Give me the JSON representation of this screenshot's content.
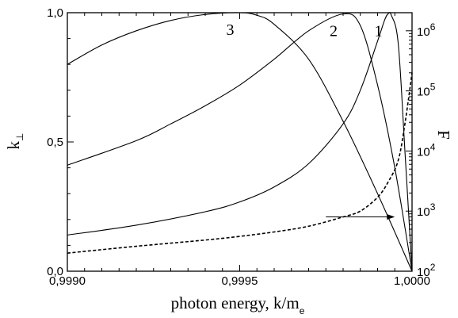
{
  "chart_data": {
    "type": "line",
    "title": "",
    "xlabel": "photon energy, k/m",
    "xlabel_sub": "e",
    "ylabel_left": "k",
    "ylabel_left_sub": "⊥",
    "ylabel_right": "F",
    "xlim": [
      0.999,
      1.0
    ],
    "ylim_left": [
      0.0,
      1.0
    ],
    "ylim_right": [
      100,
      2000000
    ],
    "right_axis_scale": "log",
    "grid": false,
    "x_ticks": [
      {
        "value": 0.999,
        "label": "0,9990"
      },
      {
        "value": 0.9995,
        "label": "0,9995"
      },
      {
        "value": 1.0,
        "label": "1,0000"
      }
    ],
    "y_left_ticks": [
      {
        "value": 0.0,
        "label": "0,0"
      },
      {
        "value": 0.5,
        "label": "0,5"
      },
      {
        "value": 1.0,
        "label": "1,0"
      }
    ],
    "y_right_ticks": [
      {
        "value": 100,
        "base": "10",
        "exp": "2"
      },
      {
        "value": 1000,
        "base": "10",
        "exp": "3"
      },
      {
        "value": 10000,
        "base": "10",
        "exp": "4"
      },
      {
        "value": 100000,
        "base": "10",
        "exp": "5"
      },
      {
        "value": 1000000,
        "base": "10",
        "exp": "6"
      }
    ],
    "series": [
      {
        "name": "1",
        "axis": "left",
        "style": "solid",
        "x": [
          0.999,
          0.9992,
          0.9994,
          0.9995,
          0.9996,
          0.9997,
          0.9998,
          0.99985,
          0.9999,
          0.99992,
          0.99993,
          0.99994,
          0.99996,
          0.99998,
          1.0
        ],
        "y": [
          0.14,
          0.178,
          0.23,
          0.268,
          0.326,
          0.416,
          0.57,
          0.7,
          0.89,
          0.97,
          0.995,
          0.99,
          0.88,
          0.45,
          0.0
        ]
      },
      {
        "name": "2",
        "axis": "left",
        "style": "solid",
        "x": [
          0.999,
          0.9992,
          0.9993,
          0.9994,
          0.9995,
          0.9996,
          0.9997,
          0.9998,
          0.99985,
          0.9999,
          0.99995,
          1.0
        ],
        "y": [
          0.41,
          0.505,
          0.57,
          0.64,
          0.72,
          0.82,
          0.93,
          0.995,
          0.95,
          0.72,
          0.4,
          0.0
        ]
      },
      {
        "name": "3",
        "axis": "left",
        "style": "solid",
        "x": [
          0.999,
          0.9991,
          0.9992,
          0.9993,
          0.9994,
          0.9995,
          0.99955,
          0.9996,
          0.9997,
          0.9998,
          0.9999,
          1.0
        ],
        "y": [
          0.8,
          0.875,
          0.93,
          0.97,
          0.993,
          1.0,
          0.99,
          0.955,
          0.82,
          0.58,
          0.3,
          0.0
        ]
      },
      {
        "name": "",
        "axis": "right",
        "style": "dashed",
        "x": [
          0.999,
          0.9992,
          0.9994,
          0.9995,
          0.9996,
          0.9997,
          0.9998,
          0.99985,
          0.9999,
          0.99993,
          0.99996,
          0.99998,
          1.0
        ],
        "y": [
          200,
          260,
          330,
          380,
          450,
          560,
          800,
          1000,
          1700,
          3000,
          7000,
          30000,
          200000
        ]
      }
    ],
    "annotations": [
      {
        "type": "arrow",
        "from": {
          "x": 0.99975
        },
        "to": {
          "x": 0.99995
        },
        "points_to_axis": "right",
        "level_left": 0.21
      }
    ]
  }
}
